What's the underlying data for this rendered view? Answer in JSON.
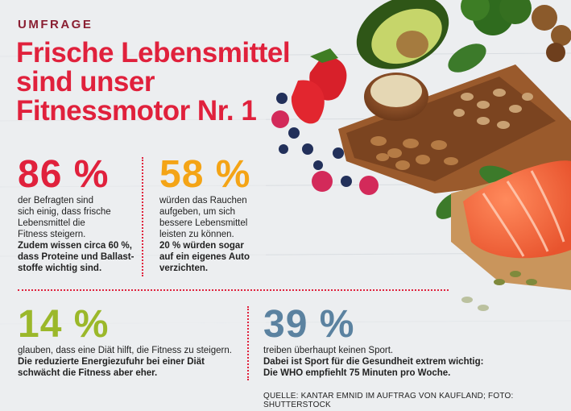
{
  "overline": "UMFRAGE",
  "headline": [
    "Frische Lebensmittel",
    "sind unser",
    "Fitnessmotor Nr. 1"
  ],
  "stats": [
    {
      "value": "86 %",
      "text": [
        "der Befragten sind",
        "sich einig, dass frische",
        "Lebensmittel die",
        "Fitness steigern."
      ],
      "bold": [
        "Zudem wissen circa 60 %,",
        "dass Proteine und Ballast-",
        "stoffe wichtig sind."
      ],
      "color": "#e0213c"
    },
    {
      "value": "58 %",
      "text": [
        "würden das Rauchen",
        "aufgeben, um sich",
        "bessere Lebensmittel",
        "leisten zu können."
      ],
      "bold": [
        "20 % würden sogar",
        "auf ein eigenes Auto",
        "verzichten."
      ],
      "color": "#f4a416"
    },
    {
      "value": "14 %",
      "text": [
        "glauben, dass eine Diät hilft, die Fitness zu steigern."
      ],
      "bold": [
        "Die reduzierte Energiezufuhr bei einer Diät",
        "schwächt die Fitness aber eher."
      ],
      "color": "#9bb82a"
    },
    {
      "value": "39 %",
      "text": [
        "treiben überhaupt keinen Sport."
      ],
      "bold": [
        "Dabei ist Sport für die Gesundheit extrem wichtig:",
        "Die WHO empfiehlt 75 Minuten pro Woche."
      ],
      "color": "#5b82a0"
    }
  ],
  "source": "QUELLE: KANTAR EMNID IM AUFTRAG VON KAUFLAND; FOTO: SHUTTERSTOCK"
}
